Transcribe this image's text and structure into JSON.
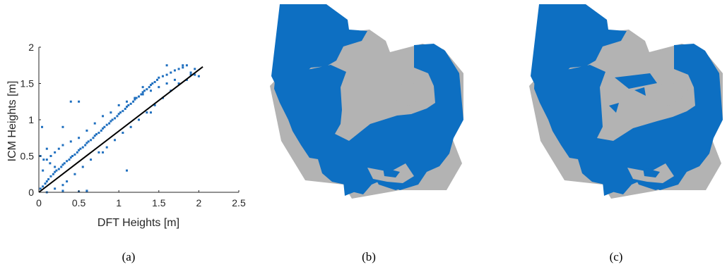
{
  "figure": {
    "captions": {
      "a": "(a)",
      "b": "(b)",
      "c": "(c)"
    }
  },
  "colors": {
    "points": "#1f6fbf",
    "fit_line": "#000000",
    "map_blue": "#0d6fc2",
    "map_gray": "#b3b3b3"
  },
  "chart_data": {
    "type": "scatter",
    "title": "",
    "xlabel": "DFT Heights [m]",
    "ylabel": "ICM Heights [m]",
    "xlim": [
      0,
      2.5
    ],
    "ylim": [
      0,
      2
    ],
    "xticks": [
      "0",
      "0.5",
      "1",
      "1.5",
      "2",
      "2.5"
    ],
    "yticks": [
      "0",
      "0.5",
      "1",
      "1.5",
      "2"
    ],
    "grid": false,
    "series": [
      {
        "kind": "points",
        "x": [
          0.02,
          0.05,
          0.08,
          0.1,
          0.12,
          0.15,
          0.18,
          0.2,
          0.22,
          0.25,
          0.28,
          0.3,
          0.32,
          0.35,
          0.38,
          0.4,
          0.42,
          0.45,
          0.48,
          0.5,
          0.52,
          0.55,
          0.58,
          0.6,
          0.62,
          0.65,
          0.68,
          0.7,
          0.72,
          0.75,
          0.78,
          0.8,
          0.82,
          0.85,
          0.88,
          0.9,
          0.92,
          0.95,
          0.98,
          1.0,
          1.02,
          1.05,
          1.08,
          1.1,
          1.12,
          1.15,
          1.18,
          1.2,
          1.22,
          1.25,
          1.28,
          1.3,
          1.32,
          1.35,
          1.38,
          1.4,
          1.42,
          1.45,
          1.48,
          1.5,
          1.55,
          1.6,
          1.65,
          1.7,
          1.75,
          1.8,
          1.85,
          1.9,
          1.95,
          2.0,
          0.05,
          0.1,
          0.15,
          0.2,
          0.25,
          0.3,
          0.4,
          0.5,
          0.6,
          0.7,
          0.8,
          0.9,
          1.0,
          1.1,
          1.2,
          1.3,
          1.4,
          1.5,
          1.6,
          1.7,
          0.1,
          0.2,
          0.3,
          0.35,
          0.45,
          0.55,
          0.65,
          0.75,
          0.85,
          0.95,
          1.05,
          1.15,
          1.25,
          1.35,
          1.45,
          1.55,
          1.65,
          1.75,
          1.85,
          1.95,
          0.02,
          0.04,
          0.06,
          0.1,
          0.14,
          0.2,
          0.3,
          0.4,
          0.5,
          0.6,
          0.3,
          0.5,
          0.6,
          0.8,
          1.1,
          1.4,
          1.6,
          1.8,
          1.9,
          1.3
        ],
        "y": [
          0.05,
          0.08,
          0.12,
          0.15,
          0.18,
          0.22,
          0.25,
          0.28,
          0.3,
          0.32,
          0.35,
          0.38,
          0.4,
          0.43,
          0.45,
          0.48,
          0.5,
          0.52,
          0.55,
          0.58,
          0.6,
          0.62,
          0.65,
          0.68,
          0.7,
          0.72,
          0.75,
          0.78,
          0.8,
          0.82,
          0.85,
          0.88,
          0.9,
          0.93,
          0.95,
          0.98,
          1.0,
          1.02,
          1.05,
          1.08,
          1.1,
          1.12,
          1.15,
          1.18,
          1.2,
          1.22,
          1.25,
          1.28,
          1.3,
          1.32,
          1.35,
          1.38,
          1.4,
          1.42,
          1.45,
          1.48,
          1.5,
          1.52,
          1.55,
          1.58,
          1.6,
          1.62,
          1.65,
          1.68,
          1.7,
          1.72,
          1.75,
          1.62,
          1.7,
          1.6,
          0.3,
          0.45,
          0.5,
          0.55,
          0.6,
          0.65,
          0.7,
          0.75,
          0.85,
          0.95,
          1.05,
          1.1,
          1.2,
          1.25,
          1.3,
          1.35,
          1.4,
          1.45,
          1.5,
          1.55,
          0.0,
          0.05,
          0.1,
          0.15,
          0.25,
          0.35,
          0.45,
          0.55,
          0.62,
          0.72,
          0.82,
          0.9,
          1.0,
          1.1,
          1.2,
          1.3,
          1.4,
          1.5,
          1.55,
          1.62,
          0.5,
          0.9,
          0.45,
          0.6,
          0.4,
          0.35,
          0.9,
          1.25,
          1.25,
          0.02,
          0.02,
          0.01,
          0.02,
          0.55,
          0.3,
          1.1,
          1.75,
          1.75,
          1.65,
          1.45
        ]
      },
      {
        "kind": "fit_line",
        "x": [
          0,
          2.05
        ],
        "y": [
          0,
          1.73
        ]
      }
    ]
  }
}
